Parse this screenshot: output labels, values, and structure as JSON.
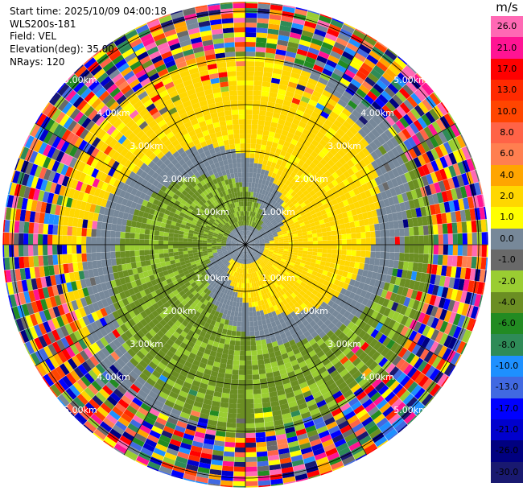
{
  "header": {
    "start_time": "Start time: 2025/10/09 04:00:18",
    "site": "WLS200s-181",
    "field": "Field: VEL",
    "elevation": "Elevation(deg): 35.00",
    "nrays": "NRays: 120"
  },
  "colorbar": {
    "unit": "m/s",
    "ticks": [
      "26.0",
      "21.0",
      "17.0",
      "13.0",
      "10.0",
      "8.0",
      "6.0",
      "4.0",
      "2.0",
      "1.0",
      "0.0",
      "-1.0",
      "-2.0",
      "-4.0",
      "-6.0",
      "-8.0",
      "-10.0",
      "-13.0",
      "-17.0",
      "-21.0",
      "-26.0",
      "-30.0"
    ],
    "colors": [
      "#ff69b4",
      "#ff1493",
      "#ff0000",
      "#ff2a00",
      "#ff4500",
      "#ff6347",
      "#ff7f50",
      "#ffa500",
      "#ffd700",
      "#ffff00",
      "#778899",
      "#696969",
      "#9acd32",
      "#6b8e23",
      "#228b22",
      "#2e8b57",
      "#1e90ff",
      "#4169e1",
      "#0000ff",
      "#0000cd",
      "#000080",
      "#191970"
    ]
  },
  "chart_data": {
    "type": "heatmap",
    "title": "",
    "projection": "polar PPI",
    "nrays": 120,
    "range_rings_km": [
      1,
      2,
      3,
      4,
      5
    ],
    "ring_labels": [
      "1.00km",
      "2.00km",
      "3.00km",
      "4.00km",
      "5.00km"
    ],
    "max_range_km": 5.2,
    "spoke_step_deg": 30,
    "velocity_range": [
      -30,
      26
    ],
    "background_color": "#778899",
    "noise_start_km": 4.0
  }
}
